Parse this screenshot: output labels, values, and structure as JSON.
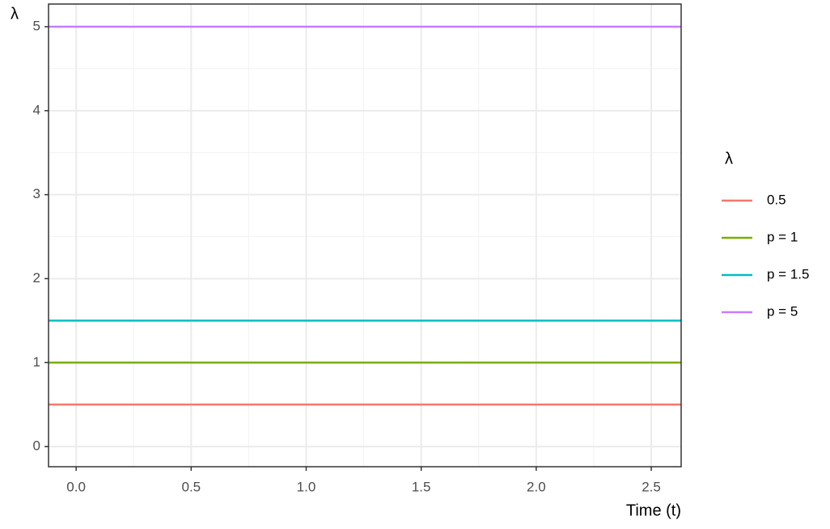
{
  "chart_data": {
    "type": "line",
    "y_label": "λ",
    "x_label": "Time (t)",
    "legend_title": "λ",
    "x": [
      -0.12,
      2.63
    ],
    "series": [
      {
        "name": "0.5",
        "color": "#F8766D",
        "values": [
          0.5,
          0.5
        ]
      },
      {
        "name": "p = 1",
        "color": "#7CAE00",
        "values": [
          1,
          1
        ]
      },
      {
        "name": "p = 1.5",
        "color": "#00BFC4",
        "values": [
          1.5,
          1.5
        ]
      },
      {
        "name": "p = 5",
        "color": "#C77CFF",
        "values": [
          5,
          5
        ]
      }
    ],
    "xlim": [
      -0.12,
      2.63
    ],
    "xticks": [
      {
        "value": 0,
        "label": "0.0"
      },
      0.5,
      {
        "value": 1,
        "label": "1.0"
      },
      1.5,
      {
        "value": 2,
        "label": "2.0"
      },
      2.5
    ],
    "ylim": [
      -0.24,
      5.27
    ],
    "yticks": [
      0,
      1,
      2,
      3,
      4,
      5
    ],
    "grid": true,
    "legend": "right"
  }
}
